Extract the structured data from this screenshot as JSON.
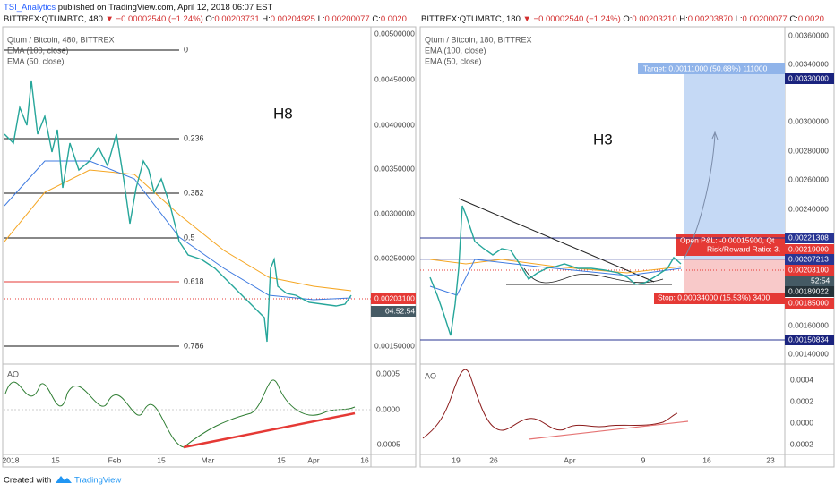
{
  "header": {
    "user": "TSI_Analytics",
    "text": " published on TradingView.com, April 12, 2018 06:07 EST"
  },
  "left": {
    "symbol": "BITTREX:QTUMBTC, 480 ",
    "change": "▼ −0.00002540 (−1.24%) ",
    "ohlc": [
      "O:",
      "0.00203731",
      " H:",
      "0.00204925",
      " L:",
      "0.00200077",
      " C:",
      "0.0020"
    ],
    "legend": [
      "Qtum / Bitcoin, 480, BITTREX",
      "EMA (100, close)",
      "EMA (50, close)"
    ],
    "note": "H8",
    "price_ticks": [
      "0.00500000",
      "0.00450000",
      "0.00400000",
      "0.00350000",
      "0.00300000",
      "0.00250000",
      "0.00150000"
    ],
    "last_price": "0.00203100",
    "countdown": "04:52:54",
    "fib": [
      "0",
      "0.236",
      "0.382",
      "0.5",
      "0.618",
      "0.786"
    ],
    "ao_label": "AO",
    "ao_ticks": [
      "0.0005",
      "0.0000",
      "-0.0005"
    ],
    "time_ticks": [
      "2018",
      "15",
      "Feb",
      "15",
      "Mar",
      "15",
      "Apr",
      "16"
    ]
  },
  "right": {
    "symbol": "BITTREX:QTUMBTC, 180 ",
    "change": "▼ −0.00002540 (−1.24%) ",
    "ohlc": [
      "O:",
      "0.00203210",
      " H:",
      "0.00203870",
      " L:",
      "0.00200077",
      " C:",
      "0.0020"
    ],
    "legend": [
      "Qtum / Bitcoin, 180, BITTREX",
      "EMA (100, close)",
      "EMA (50, close)"
    ],
    "note": "H3",
    "price_ticks": [
      "0.00360000",
      "0.00340000",
      "0.00300000",
      "0.00280000",
      "0.00260000",
      "0.00240000",
      "0.00160000",
      "0.00140000"
    ],
    "badges": [
      "0.00330000",
      "0.00221308",
      "0.00219000",
      "0.00207213",
      "0.00203100",
      "52:54",
      "0.00189022",
      "0.00185000",
      "0.00150834"
    ],
    "target": "Target: 0.00111000 (50.68%) 111000",
    "pnl": "Open P&L: -0.00015900, Qt",
    "rr": "Risk/Reward Ratio: 3.",
    "stop": "Stop: 0.00034000 (15.53%) 3400",
    "ao_label": "AO",
    "ao_ticks": [
      "0.0004",
      "0.0002",
      "0.0000",
      "-0.0002"
    ],
    "time_ticks": [
      "19",
      "26",
      "Apr",
      "9",
      "16",
      "23"
    ]
  },
  "footer": {
    "created": "Created with",
    "brand": "TradingView"
  }
}
